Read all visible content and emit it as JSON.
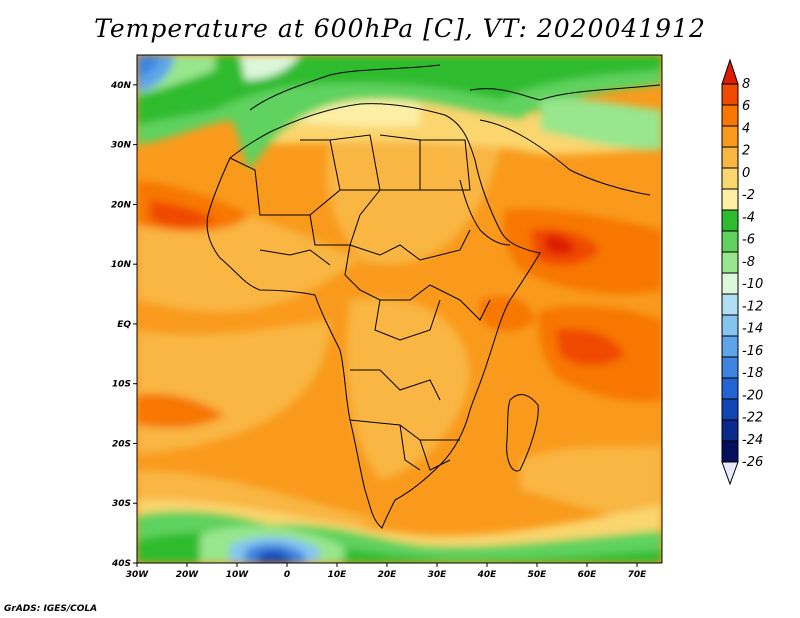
{
  "title": "Temperature at 600hPa [C], VT: 2020041912",
  "credit": "GrADS: IGES/COLA",
  "map": {
    "lon_ticks": [
      "30W",
      "20W",
      "10W",
      "0",
      "10E",
      "20E",
      "30E",
      "40E",
      "50E",
      "60E",
      "70E"
    ],
    "lat_ticks": [
      "40N",
      "30N",
      "20N",
      "10N",
      "EQ",
      "10S",
      "20S",
      "30S",
      "40S"
    ],
    "lon_range": [
      -30,
      75
    ],
    "lat_range": [
      -40,
      45
    ]
  },
  "colorbar": {
    "labels": [
      "8",
      "6",
      "4",
      "2",
      "0",
      "-2",
      "-4",
      "-6",
      "-8",
      "-10",
      "-12",
      "-14",
      "-16",
      "-18",
      "-20",
      "-22",
      "-24",
      "-26"
    ],
    "colors": [
      "#dd1c00",
      "#f04a00",
      "#f77700",
      "#f99a1c",
      "#f9b643",
      "#fbd56e",
      "#fdefa6",
      "#2fbb2f",
      "#61d25e",
      "#98e68d",
      "#dcf7dc",
      "#b0def3",
      "#86c4f0",
      "#5ea4e8",
      "#3d85e0",
      "#2364d2",
      "#1245b4",
      "#0a2a8e",
      "#060f5c",
      "#e8e8ff"
    ]
  }
}
